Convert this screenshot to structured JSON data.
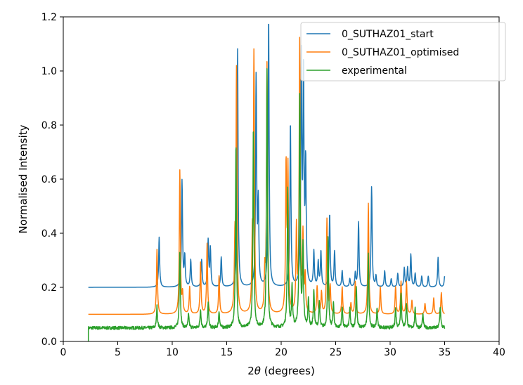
{
  "chart_data": {
    "type": "line",
    "title": "",
    "xlabel_prefix": "2",
    "xlabel_theta": "θ",
    "xlabel_suffix": " (degrees)",
    "ylabel": "Normalised Intensity",
    "xlim": [
      0,
      40
    ],
    "ylim": [
      0,
      1.2
    ],
    "xticks": [
      "0",
      "5",
      "10",
      "15",
      "20",
      "25",
      "30",
      "35",
      "40"
    ],
    "yticks": [
      "0.0",
      "0.2",
      "0.4",
      "0.6",
      "0.8",
      "1.0",
      "1.2"
    ],
    "grid": false,
    "legend_position": "top-right",
    "series": [
      {
        "name": "0_SUTHAZ01_start",
        "color": "#1f77b4",
        "baseline": 0.2,
        "x_range": [
          2.3,
          35
        ],
        "peaks": [
          [
            8.8,
            0.385
          ],
          [
            10.9,
            0.593
          ],
          [
            11.15,
            0.31
          ],
          [
            11.7,
            0.3
          ],
          [
            12.7,
            0.3
          ],
          [
            13.3,
            0.37
          ],
          [
            13.5,
            0.34
          ],
          [
            14.5,
            0.31
          ],
          [
            16.0,
            1.08
          ],
          [
            17.7,
            0.97
          ],
          [
            17.9,
            0.5
          ],
          [
            18.85,
            1.2
          ],
          [
            20.85,
            0.81
          ],
          [
            21.85,
            1.05
          ],
          [
            22.05,
            0.97
          ],
          [
            22.25,
            0.64
          ],
          [
            23.0,
            0.33
          ],
          [
            23.4,
            0.29
          ],
          [
            23.65,
            0.33
          ],
          [
            24.45,
            0.47
          ],
          [
            24.9,
            0.33
          ],
          [
            25.6,
            0.26
          ],
          [
            26.3,
            0.23
          ],
          [
            26.8,
            0.25
          ],
          [
            27.1,
            0.44
          ],
          [
            28.3,
            0.57
          ],
          [
            28.7,
            0.24
          ],
          [
            29.5,
            0.26
          ],
          [
            30.1,
            0.23
          ],
          [
            30.7,
            0.25
          ],
          [
            31.3,
            0.27
          ],
          [
            31.6,
            0.27
          ],
          [
            31.9,
            0.32
          ],
          [
            32.3,
            0.25
          ],
          [
            32.9,
            0.24
          ],
          [
            33.5,
            0.24
          ],
          [
            34.4,
            0.31
          ],
          [
            35.0,
            0.24
          ]
        ]
      },
      {
        "name": "0_SUTHAZ01_optimised",
        "color": "#ff7f0e",
        "baseline": 0.1,
        "x_range": [
          2.3,
          35
        ],
        "peaks": [
          [
            8.6,
            0.34
          ],
          [
            10.7,
            0.63
          ],
          [
            10.95,
            0.17
          ],
          [
            11.6,
            0.2
          ],
          [
            12.6,
            0.29
          ],
          [
            13.2,
            0.36
          ],
          [
            14.3,
            0.24
          ],
          [
            15.75,
            0.33
          ],
          [
            15.9,
            0.99
          ],
          [
            17.35,
            0.33
          ],
          [
            17.5,
            1.05
          ],
          [
            18.5,
            0.24
          ],
          [
            18.7,
            1.02
          ],
          [
            20.45,
            0.64
          ],
          [
            20.62,
            0.62
          ],
          [
            21.4,
            0.41
          ],
          [
            21.7,
            1.1
          ],
          [
            22.0,
            0.38
          ],
          [
            22.2,
            0.23
          ],
          [
            23.3,
            0.2
          ],
          [
            23.7,
            0.18
          ],
          [
            24.2,
            0.45
          ],
          [
            24.5,
            0.2
          ],
          [
            25.6,
            0.2
          ],
          [
            26.4,
            0.14
          ],
          [
            26.8,
            0.22
          ],
          [
            28.0,
            0.51
          ],
          [
            29.1,
            0.2
          ],
          [
            30.5,
            0.2
          ],
          [
            31.0,
            0.22
          ],
          [
            31.5,
            0.22
          ],
          [
            32.0,
            0.15
          ],
          [
            33.2,
            0.14
          ],
          [
            34.0,
            0.16
          ],
          [
            34.7,
            0.18
          ]
        ]
      },
      {
        "name": "experimental",
        "color": "#2ca02c",
        "baseline": 0.05,
        "x_range": [
          2.3,
          35
        ],
        "peaks": [
          [
            8.6,
            0.13
          ],
          [
            10.7,
            0.33
          ],
          [
            11.5,
            0.1
          ],
          [
            12.6,
            0.12
          ],
          [
            13.3,
            0.14
          ],
          [
            14.3,
            0.11
          ],
          [
            15.85,
            0.73
          ],
          [
            17.45,
            0.79
          ],
          [
            18.7,
            1.0
          ],
          [
            20.6,
            0.56
          ],
          [
            21.0,
            0.2
          ],
          [
            21.7,
            0.9
          ],
          [
            22.0,
            0.35
          ],
          [
            22.5,
            0.15
          ],
          [
            23.0,
            0.19
          ],
          [
            23.5,
            0.14
          ],
          [
            24.3,
            0.38
          ],
          [
            24.8,
            0.14
          ],
          [
            25.6,
            0.13
          ],
          [
            26.3,
            0.12
          ],
          [
            26.9,
            0.2
          ],
          [
            28.0,
            0.32
          ],
          [
            28.8,
            0.12
          ],
          [
            30.5,
            0.12
          ],
          [
            31.0,
            0.18
          ],
          [
            31.5,
            0.14
          ],
          [
            32.3,
            0.12
          ],
          [
            33.0,
            0.1
          ],
          [
            34.6,
            0.13
          ]
        ]
      }
    ]
  }
}
